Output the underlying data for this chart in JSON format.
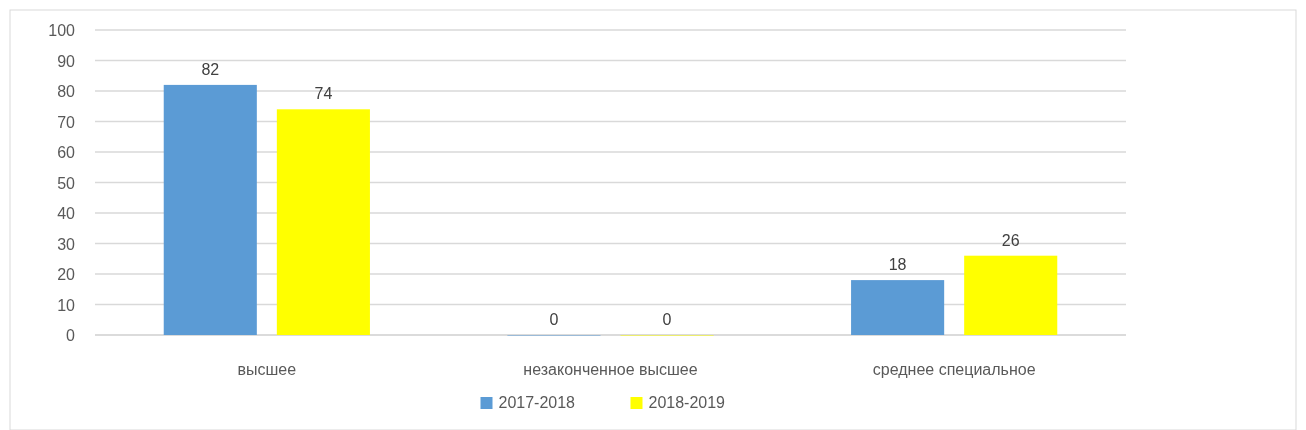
{
  "chart_data": {
    "type": "bar",
    "categories": [
      "высшее",
      "незаконченное высшее",
      "среднее специальное"
    ],
    "series": [
      {
        "name": "2017-2018",
        "color": "#5b9bd5",
        "values": [
          82,
          0,
          18
        ]
      },
      {
        "name": "2018-2019",
        "color": "#ffff00",
        "values": [
          74,
          0,
          26
        ]
      }
    ],
    "ylim": [
      0,
      100
    ],
    "yticks": [
      0,
      10,
      20,
      30,
      40,
      50,
      60,
      70,
      80,
      90,
      100
    ],
    "grid": "y",
    "legend": "bottom",
    "data_labels": true
  }
}
